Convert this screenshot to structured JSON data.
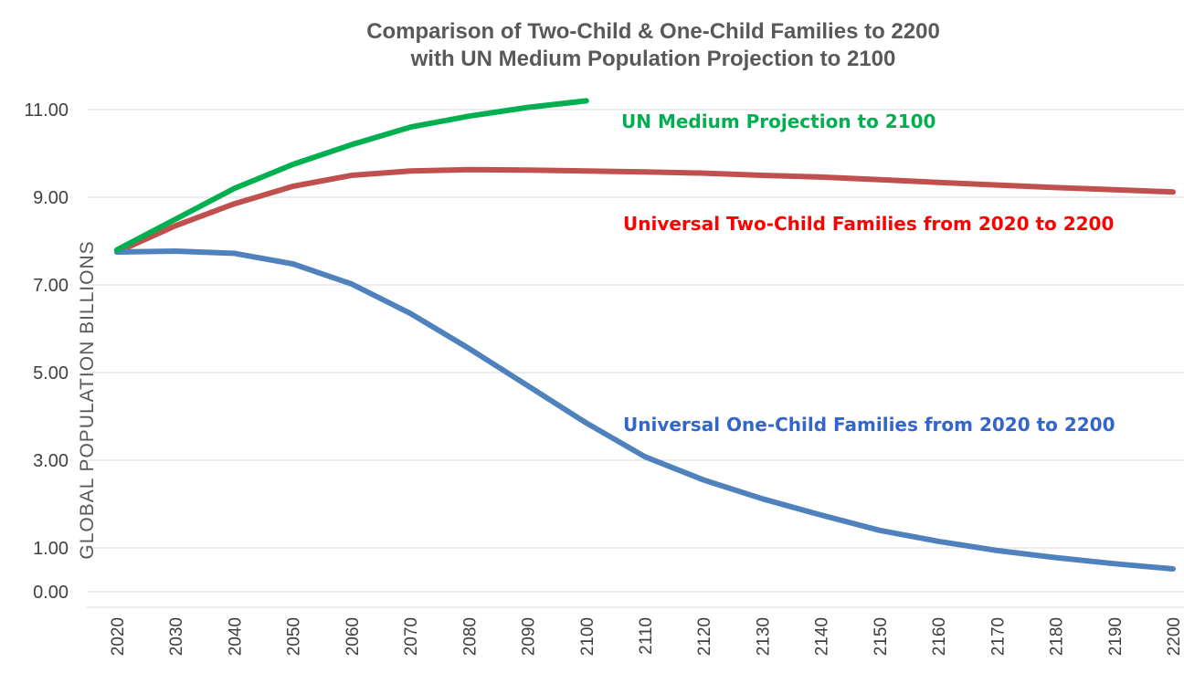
{
  "chart_data": {
    "type": "line",
    "title_line1": "Comparison of Two-Child & One-Child Families to 2200",
    "title_line2": "with UN Medium Population Projection to 2100",
    "ylabel": "GLOBAL POPULATION  BILLIONS",
    "xlabel": "",
    "x": [
      2020,
      2030,
      2040,
      2050,
      2060,
      2070,
      2080,
      2090,
      2100,
      2110,
      2120,
      2130,
      2140,
      2150,
      2160,
      2170,
      2180,
      2190,
      2200
    ],
    "y_ticks": [
      "0.00",
      "1.00",
      "3.00",
      "5.00",
      "7.00",
      "9.00",
      "11.00"
    ],
    "ylim": [
      0,
      11
    ],
    "grid": true,
    "series": [
      {
        "name": "UN Medium Projection to 2100",
        "color": "#00b050",
        "values": [
          7.8,
          8.5,
          9.2,
          9.75,
          10.2,
          10.6,
          10.85,
          11.05,
          11.2,
          null,
          null,
          null,
          null,
          null,
          null,
          null,
          null,
          null,
          null
        ]
      },
      {
        "name": "Universal Two-Child Families from 2020 to 2200",
        "color": "#c0504d",
        "label_color": "#ff0000",
        "values": [
          7.75,
          8.35,
          8.85,
          9.25,
          9.5,
          9.6,
          9.63,
          9.62,
          9.6,
          9.58,
          9.55,
          9.5,
          9.46,
          9.4,
          9.34,
          9.28,
          9.22,
          9.17,
          9.12
        ]
      },
      {
        "name": "Universal One-Child Families from 2020 to 2200",
        "color": "#4f81bd",
        "label_color": "#3366cc",
        "values": [
          7.75,
          7.77,
          7.72,
          7.48,
          7.02,
          6.35,
          5.55,
          4.7,
          3.85,
          3.08,
          2.55,
          2.12,
          1.75,
          1.4,
          1.15,
          0.94,
          0.78,
          0.64,
          0.52
        ]
      }
    ]
  }
}
